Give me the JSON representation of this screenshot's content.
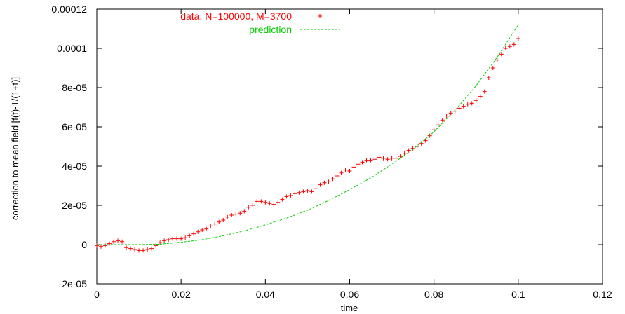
{
  "chart_data": {
    "type": "scatter",
    "title": "",
    "xlabel": "time",
    "ylabel": "correction to mean field [f(t)-1/(1+t)]",
    "xlim": [
      0,
      0.12
    ],
    "ylim": [
      -2e-05,
      0.00012
    ],
    "xticks": [
      0,
      0.02,
      0.04,
      0.06,
      0.08,
      0.1,
      0.12
    ],
    "xtick_labels": [
      "0",
      "0.02",
      "0.04",
      "0.06",
      "0.08",
      "0.1",
      "0.12"
    ],
    "yticks": [
      -2e-05,
      0,
      2e-05,
      4e-05,
      6e-05,
      8e-05,
      0.0001,
      0.00012
    ],
    "ytick_labels": [
      "-2e-05",
      "0",
      "2e-05",
      "4e-05",
      "6e-05",
      "8e-05",
      "0.0001",
      "0.00012"
    ],
    "grid": false,
    "legend_position": "top",
    "series": [
      {
        "name": "data, N=100000, M=3700",
        "kind": "points",
        "marker": "plus",
        "color": "#ff0000",
        "x": [
          0.0,
          0.001,
          0.002,
          0.003,
          0.004,
          0.005,
          0.006,
          0.007,
          0.008,
          0.009,
          0.01,
          0.011,
          0.012,
          0.013,
          0.014,
          0.015,
          0.016,
          0.017,
          0.018,
          0.019,
          0.02,
          0.021,
          0.022,
          0.023,
          0.024,
          0.025,
          0.026,
          0.027,
          0.028,
          0.029,
          0.03,
          0.031,
          0.032,
          0.033,
          0.034,
          0.035,
          0.036,
          0.037,
          0.038,
          0.039,
          0.04,
          0.041,
          0.042,
          0.043,
          0.044,
          0.045,
          0.046,
          0.047,
          0.048,
          0.049,
          0.05,
          0.051,
          0.052,
          0.053,
          0.054,
          0.055,
          0.056,
          0.057,
          0.058,
          0.059,
          0.06,
          0.061,
          0.062,
          0.063,
          0.064,
          0.065,
          0.066,
          0.067,
          0.068,
          0.069,
          0.07,
          0.071,
          0.072,
          0.073,
          0.074,
          0.075,
          0.076,
          0.077,
          0.078,
          0.079,
          0.08,
          0.081,
          0.082,
          0.083,
          0.084,
          0.085,
          0.086,
          0.087,
          0.088,
          0.089,
          0.09,
          0.091,
          0.092,
          0.093,
          0.094,
          0.095,
          0.096,
          0.097,
          0.098,
          0.099,
          0.1
        ],
        "y": [
          -5e-07,
          -1e-06,
          -5e-07,
          5e-07,
          1.5e-06,
          2e-06,
          1.5e-06,
          -1.5e-06,
          -2e-06,
          -2.5e-06,
          -3e-06,
          -3e-06,
          -2.5e-06,
          -2e-06,
          -5e-07,
          1e-06,
          2e-06,
          2.5e-06,
          3e-06,
          3e-06,
          3e-06,
          3.5e-06,
          4.5e-06,
          5.5e-06,
          6.5e-06,
          7.5e-06,
          8e-06,
          9.5e-06,
          1.05e-05,
          1.15e-05,
          1.25e-05,
          1.4e-05,
          1.5e-05,
          1.55e-05,
          1.6e-05,
          1.7e-05,
          1.9e-05,
          2e-05,
          2.2e-05,
          2.2e-05,
          2.15e-05,
          2.1e-05,
          2.05e-05,
          2.15e-05,
          2.3e-05,
          2.45e-05,
          2.5e-05,
          2.6e-05,
          2.65e-05,
          2.7e-05,
          2.75e-05,
          2.7e-05,
          2.85e-05,
          3.05e-05,
          3.15e-05,
          3.2e-05,
          3.35e-05,
          3.5e-05,
          3.65e-05,
          3.8e-05,
          3.75e-05,
          3.95e-05,
          4.1e-05,
          4.2e-05,
          4.3e-05,
          4.3e-05,
          4.35e-05,
          4.45e-05,
          4.4e-05,
          4.35e-05,
          4.4e-05,
          4.4e-05,
          4.5e-05,
          4.65e-05,
          4.8e-05,
          4.9e-05,
          5e-05,
          5.15e-05,
          5.3e-05,
          5.55e-05,
          5.85e-05,
          6.1e-05,
          6.35e-05,
          6.55e-05,
          6.7e-05,
          6.8e-05,
          6.95e-05,
          7.05e-05,
          7.15e-05,
          7.2e-05,
          7.35e-05,
          7.55e-05,
          7.8e-05,
          8.5e-05,
          9e-05,
          9.4e-05,
          9.7e-05,
          0.0001,
          0.000101,
          0.000102,
          0.000105
        ]
      },
      {
        "name": "prediction",
        "kind": "line",
        "style": "dashed",
        "color": "#00cc00",
        "x": [
          0.0,
          0.01,
          0.015,
          0.02,
          0.025,
          0.03,
          0.035,
          0.04,
          0.045,
          0.05,
          0.055,
          0.06,
          0.065,
          0.07,
          0.075,
          0.08,
          0.085,
          0.09,
          0.095,
          0.1
        ],
        "y": [
          0.0,
          0.0,
          2e-07,
          1.2e-06,
          2.5e-06,
          4.5e-06,
          7e-06,
          1e-05,
          1.35e-05,
          1.75e-05,
          2.25e-05,
          2.8e-05,
          3.4e-05,
          4.1e-05,
          4.85e-05,
          5.75e-05,
          6.85e-05,
          8.1e-05,
          9.55e-05,
          0.000112
        ]
      }
    ]
  }
}
